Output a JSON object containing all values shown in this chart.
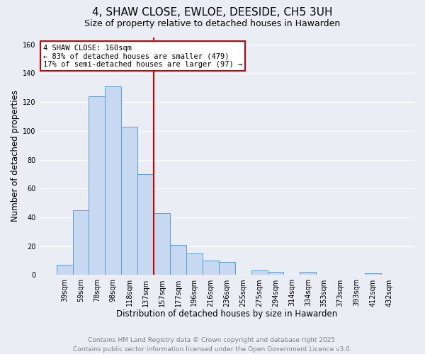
{
  "title": "4, SHAW CLOSE, EWLOE, DEESIDE, CH5 3UH",
  "subtitle": "Size of property relative to detached houses in Hawarden",
  "xlabel": "Distribution of detached houses by size in Hawarden",
  "ylabel": "Number of detached properties",
  "bar_labels": [
    "39sqm",
    "59sqm",
    "78sqm",
    "98sqm",
    "118sqm",
    "137sqm",
    "157sqm",
    "177sqm",
    "196sqm",
    "216sqm",
    "236sqm",
    "255sqm",
    "275sqm",
    "294sqm",
    "314sqm",
    "334sqm",
    "353sqm",
    "373sqm",
    "393sqm",
    "412sqm",
    "432sqm"
  ],
  "bar_values": [
    7,
    45,
    124,
    131,
    103,
    70,
    43,
    21,
    15,
    10,
    9,
    0,
    3,
    2,
    0,
    2,
    0,
    0,
    0,
    1,
    0
  ],
  "bar_color": "#c6d9f0",
  "bar_edge_color": "#5b9bd5",
  "bg_color": "#eaedf4",
  "vline_color": "#cc0000",
  "annotation_title": "4 SHAW CLOSE: 160sqm",
  "annotation_line1": "← 83% of detached houses are smaller (479)",
  "annotation_line2": "17% of semi-detached houses are larger (97) →",
  "annotation_box_facecolor": "#ffffff",
  "annotation_box_edge": "#cc0000",
  "footer_line1": "Contains HM Land Registry data © Crown copyright and database right 2025.",
  "footer_line2": "Contains public sector information licensed under the Open Government Licence v3.0.",
  "ylim": [
    0,
    165
  ],
  "yticks": [
    0,
    20,
    40,
    60,
    80,
    100,
    120,
    140,
    160
  ],
  "title_fontsize": 11,
  "subtitle_fontsize": 9,
  "xlabel_fontsize": 8.5,
  "ylabel_fontsize": 8.5,
  "footer_fontsize": 6.5,
  "tick_fontsize": 7
}
